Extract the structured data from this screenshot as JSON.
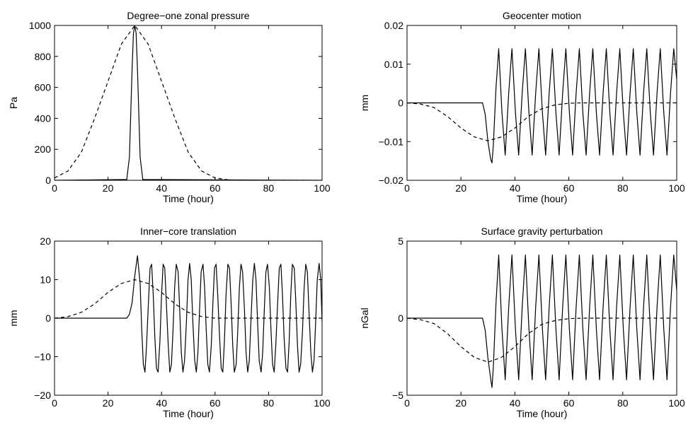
{
  "figure": {
    "chart_data": [
      {
        "type": "line",
        "title": "Degree−one zonal pressure",
        "xlabel": "Time (hour)",
        "ylabel": "Pa",
        "xlim": [
          0,
          100
        ],
        "ylim": [
          0,
          1000
        ],
        "xticks": [
          0,
          20,
          40,
          60,
          80,
          100
        ],
        "yticks": [
          0,
          200,
          400,
          600,
          800,
          1000
        ],
        "xtick_labels": [
          "0",
          "20",
          "40",
          "60",
          "80",
          "100"
        ],
        "ytick_labels": [
          "0",
          "200",
          "400",
          "600",
          "800",
          "1000"
        ],
        "grid": false,
        "series": [
          {
            "style": "solid",
            "x": [
              0,
              27,
              28,
              29,
              29.5,
              30,
              30.5,
              31,
              32,
              33,
              100
            ],
            "y": [
              0,
              5,
              150,
              720,
              950,
              1000,
              950,
              720,
              150,
              5,
              0
            ]
          },
          {
            "style": "dashed",
            "x": [
              0,
              5,
              10,
              15,
              20,
              25,
              30,
              35,
              40,
              45,
              50,
              55,
              60,
              65,
              70,
              100
            ],
            "y": [
              15,
              60,
              180,
              400,
              640,
              880,
              1000,
              880,
              640,
              400,
              180,
              60,
              15,
              3,
              0,
              0
            ]
          }
        ]
      },
      {
        "type": "line",
        "title": "Geocenter motion",
        "xlabel": "Time (hour)",
        "ylabel": "mm",
        "xlim": [
          0,
          100
        ],
        "ylim": [
          -0.02,
          0.02
        ],
        "xticks": [
          0,
          20,
          40,
          60,
          80,
          100
        ],
        "yticks": [
          -0.02,
          -0.01,
          0,
          0.01,
          0.02
        ],
        "xtick_labels": [
          "0",
          "20",
          "40",
          "60",
          "80",
          "100"
        ],
        "ytick_labels": [
          "−0.02",
          "−0.01",
          "0",
          "0.01",
          "0.02"
        ],
        "grid": false,
        "series": [
          {
            "style": "solid",
            "x": [
              0,
              28,
              29,
              30,
              31,
              31.5,
              32,
              33,
              34,
              35.2,
              36.4,
              37.7,
              38.9,
              40.2,
              41.4,
              42.7,
              43.9,
              45.2,
              46.4,
              47.7,
              48.9,
              50.2,
              51.4,
              52.7,
              53.9,
              55.2,
              56.4,
              57.7,
              58.9,
              60.2,
              61.4,
              62.7,
              63.9,
              65.2,
              66.4,
              67.7,
              68.9,
              70.2,
              71.4,
              72.7,
              73.9,
              75.2,
              76.4,
              77.7,
              78.9,
              80.2,
              81.4,
              82.7,
              83.9,
              85.2,
              86.4,
              87.7,
              88.9,
              90.2,
              91.4,
              92.7,
              93.9,
              95.2,
              96.4,
              97.7,
              98.9,
              100
            ],
            "y": [
              0,
              0,
              -0.003,
              -0.01,
              -0.0145,
              -0.0155,
              -0.011,
              0.004,
              0.014,
              -0.0025,
              -0.0135,
              0.0025,
              0.014,
              -0.0025,
              -0.0135,
              0.0025,
              0.014,
              -0.0025,
              -0.0135,
              0.0025,
              0.014,
              -0.0025,
              -0.0135,
              0.0025,
              0.014,
              -0.0025,
              -0.0135,
              0.0025,
              0.014,
              -0.0025,
              -0.0135,
              0.0025,
              0.014,
              -0.0025,
              -0.0135,
              0.0025,
              0.014,
              -0.0025,
              -0.0135,
              0.0025,
              0.014,
              -0.0025,
              -0.0135,
              0.0025,
              0.014,
              -0.0025,
              -0.0135,
              0.0025,
              0.014,
              -0.0025,
              -0.0135,
              0.0025,
              0.014,
              -0.0025,
              -0.0135,
              0.0025,
              0.014,
              -0.0025,
              -0.0135,
              0.0025,
              0.014,
              0.006
            ]
          },
          {
            "style": "dashed",
            "x": [
              0,
              5,
              10,
              15,
              20,
              25,
              30,
              35,
              40,
              45,
              50,
              55,
              60,
              65,
              70,
              100
            ],
            "y": [
              0,
              -0.0003,
              -0.0012,
              -0.0035,
              -0.0065,
              -0.0088,
              -0.0098,
              -0.0088,
              -0.0065,
              -0.0035,
              -0.0015,
              -0.0005,
              -0.0001,
              0,
              0,
              0
            ]
          }
        ]
      },
      {
        "type": "line",
        "title": "Inner−core translation",
        "xlabel": "Time (hour)",
        "ylabel": "mm",
        "xlim": [
          0,
          100
        ],
        "ylim": [
          -20,
          20
        ],
        "xticks": [
          0,
          20,
          40,
          60,
          80,
          100
        ],
        "yticks": [
          -20,
          -10,
          0,
          10,
          20
        ],
        "xtick_labels": [
          "0",
          "20",
          "40",
          "60",
          "80",
          "100"
        ],
        "ytick_labels": [
          "−20",
          "−10",
          "0",
          "10",
          "20"
        ],
        "grid": false,
        "series": [
          {
            "style": "solid",
            "x": [
              0,
              27,
              28,
              29,
              30,
              31,
              32,
              32.6,
              33.2,
              33.8,
              34.4,
              35.1,
              35.7,
              36.3,
              36.9,
              37.5,
              38.1,
              38.7,
              39.4,
              40,
              40.6,
              41.2,
              41.8,
              42.5,
              43.1,
              43.7,
              44.3,
              44.9,
              45.5,
              46.2,
              46.8,
              47.4,
              48,
              48.6,
              49.3,
              49.9,
              50.5,
              51.1,
              51.7,
              52.4,
              53,
              53.6,
              54.2,
              54.8,
              55.5,
              56.1,
              56.7,
              57.3,
              57.9,
              58.6,
              59.2,
              59.8,
              60.4,
              61,
              61.7,
              62.3,
              62.9,
              63.5,
              64.1,
              64.8,
              65.4,
              66,
              66.6,
              67.2,
              67.9,
              68.5,
              69.1,
              69.7,
              70.3,
              71,
              71.6,
              72.2,
              72.8,
              73.4,
              74.1,
              74.7,
              75.3,
              75.9,
              76.5,
              77.2,
              77.8,
              78.4,
              79,
              79.6,
              80.3,
              80.9,
              81.5,
              82.1,
              82.7,
              83.4,
              84,
              84.6,
              85.2,
              85.8,
              86.5,
              87.1,
              87.7,
              88.3,
              88.9,
              89.6,
              90.2,
              90.8,
              91.4,
              92,
              92.7,
              93.3,
              93.9,
              94.5,
              95.1,
              95.8,
              96.4,
              97,
              97.6,
              98.2,
              98.9,
              99.5,
              100
            ],
            "y": [
              0,
              0,
              1,
              4,
              11,
              16.2,
              9,
              -3,
              -12,
              -14,
              -7,
              4,
              13,
              14,
              6,
              -5,
              -13,
              -14,
              -6,
              6,
              14,
              13,
              4,
              -7,
              -14,
              -12,
              -3,
              8,
              14,
              12,
              2,
              -9,
              -14,
              -11,
              -1,
              10,
              14.2,
              10,
              -1,
              -11,
              -14,
              -9,
              2,
              12,
              14,
              8,
              -3,
              -12,
              -14,
              -7,
              4,
              13,
              14,
              6,
              -5,
              -13,
              -14,
              -6,
              6,
              14,
              13,
              4,
              -7,
              -14,
              -12,
              -3,
              8,
              14,
              12,
              2,
              -9,
              -14,
              -11,
              -1,
              10,
              14.2,
              10,
              -1,
              -11,
              -14,
              -9,
              2,
              12,
              14,
              8,
              -3,
              -12,
              -14,
              -7,
              4,
              13,
              14,
              6,
              -5,
              -13,
              -14,
              -6,
              6,
              14,
              13,
              4,
              -7,
              -14,
              -12,
              -3,
              8,
              14,
              12,
              2,
              -9,
              -14,
              -11,
              -1,
              10,
              14.2,
              10,
              -1
            ]
          },
          {
            "style": "dashed",
            "x": [
              0,
              5,
              10,
              15,
              20,
              25,
              30,
              35,
              40,
              45,
              50,
              55,
              60,
              65,
              70,
              100
            ],
            "y": [
              0,
              0.4,
              1.5,
              3.7,
              6.7,
              9,
              10,
              9,
              6.7,
              3.7,
              1.5,
              0.4,
              0,
              0,
              0,
              0
            ]
          }
        ]
      },
      {
        "type": "line",
        "title": "Surface gravity perturbation",
        "xlabel": "Time (hour)",
        "ylabel": "nGal",
        "xlim": [
          0,
          100
        ],
        "ylim": [
          -5,
          5
        ],
        "xticks": [
          0,
          20,
          40,
          60,
          80,
          100
        ],
        "yticks": [
          -5,
          0,
          5
        ],
        "xtick_labels": [
          "0",
          "20",
          "40",
          "60",
          "80",
          "100"
        ],
        "ytick_labels": [
          "−5",
          "0",
          "5"
        ],
        "grid": false,
        "series": [
          {
            "style": "solid",
            "x": [
              0,
              28,
              29,
              30,
              31,
              31.5,
              32,
              33,
              34,
              35.2,
              36.4,
              37.7,
              38.9,
              40.2,
              41.4,
              42.7,
              43.9,
              45.2,
              46.4,
              47.7,
              48.9,
              50.2,
              51.4,
              52.7,
              53.9,
              55.2,
              56.4,
              57.7,
              58.9,
              60.2,
              61.4,
              62.7,
              63.9,
              65.2,
              66.4,
              67.7,
              68.9,
              70.2,
              71.4,
              72.7,
              73.9,
              75.2,
              76.4,
              77.7,
              78.9,
              80.2,
              81.4,
              82.7,
              83.9,
              85.2,
              86.4,
              87.7,
              88.9,
              90.2,
              91.4,
              92.7,
              93.9,
              95.2,
              96.4,
              97.7,
              98.9,
              100
            ],
            "y": [
              0,
              0,
              -0.8,
              -2.6,
              -3.9,
              -4.5,
              -3.2,
              1,
              4.1,
              -0.7,
              -4,
              0.7,
              4.1,
              -0.7,
              -4,
              0.7,
              4.1,
              -0.7,
              -4,
              0.7,
              4.1,
              -0.7,
              -4,
              0.7,
              4.1,
              -0.7,
              -4,
              0.7,
              4.1,
              -0.7,
              -4,
              0.7,
              4.1,
              -0.7,
              -4,
              0.7,
              4.1,
              -0.7,
              -4,
              0.7,
              4.1,
              -0.7,
              -4,
              0.7,
              4.1,
              -0.7,
              -4,
              0.7,
              4.1,
              -0.7,
              -4,
              0.7,
              4.1,
              -0.7,
              -4,
              0.7,
              4.1,
              -0.7,
              -4,
              0.7,
              4.1,
              1.8
            ]
          },
          {
            "style": "dashed",
            "x": [
              0,
              5,
              10,
              15,
              20,
              25,
              30,
              35,
              40,
              45,
              50,
              55,
              60,
              65,
              70,
              100
            ],
            "y": [
              0,
              -0.1,
              -0.35,
              -1,
              -1.85,
              -2.55,
              -2.85,
              -2.55,
              -1.85,
              -1,
              -0.4,
              -0.15,
              -0.03,
              0,
              0,
              0
            ]
          }
        ]
      }
    ]
  }
}
